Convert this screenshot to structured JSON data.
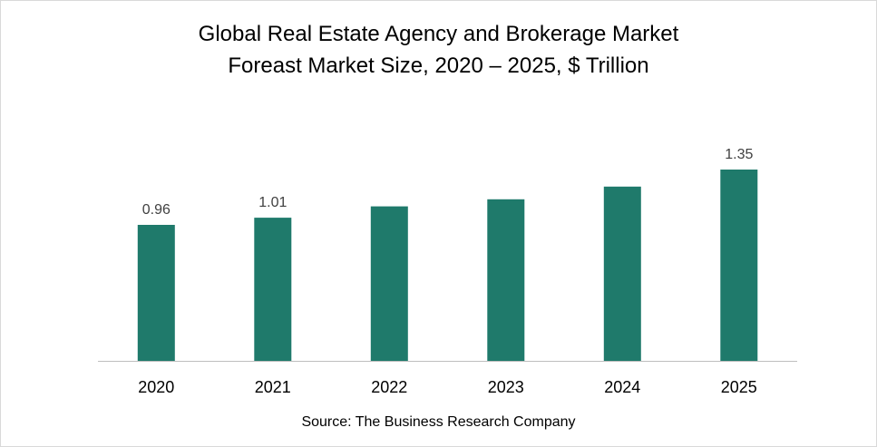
{
  "chart_data": {
    "type": "bar",
    "title_line1": "Global Real Estate Agency and Brokerage Market",
    "title_line2": "Foreast Market Size, 2020 – 2025, $ Trillion",
    "categories": [
      "2020",
      "2021",
      "2022",
      "2023",
      "2024",
      "2025"
    ],
    "values": [
      0.96,
      1.01,
      1.09,
      1.14,
      1.23,
      1.35
    ],
    "data_labels": [
      "0.96",
      "1.01",
      "",
      "",
      "",
      "1.35"
    ],
    "xlabel": "",
    "ylabel": "",
    "ylim": [
      0,
      1.35
    ],
    "grid": false,
    "legend": "none",
    "bar_color": "#1f7a6b",
    "axis_color": "#bfbfbf"
  },
  "source": "Source: The Business Research Company"
}
